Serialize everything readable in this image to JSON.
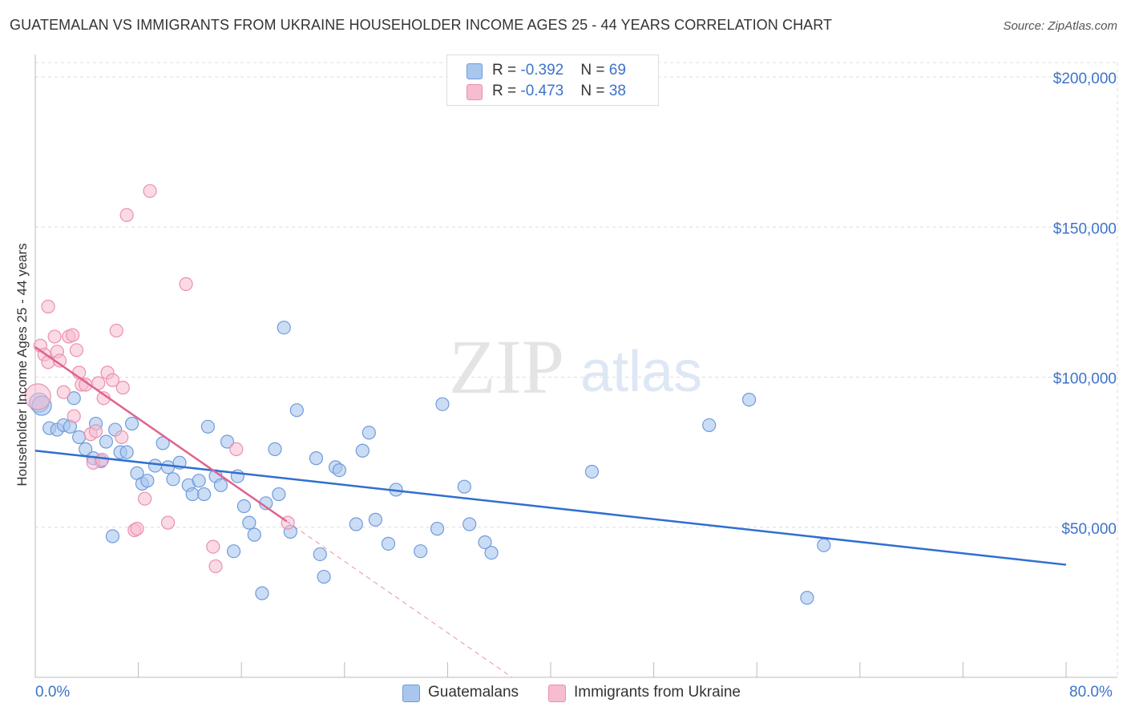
{
  "header": {
    "title": "GUATEMALAN VS IMMIGRANTS FROM UKRAINE HOUSEHOLDER INCOME AGES 25 - 44 YEARS CORRELATION CHART",
    "source": "Source: ZipAtlas.com"
  },
  "watermark": {
    "zip": "ZIP",
    "atlas": "atlas"
  },
  "legend": {
    "rows": [
      {
        "r_label": "R = ",
        "r_value": "-0.392",
        "n_label": "N = ",
        "n_value": "69"
      },
      {
        "r_label": "R = ",
        "r_value": "-0.473",
        "n_label": "N = ",
        "n_value": "38"
      }
    ]
  },
  "bottom_legend": {
    "series1": "Guatemalans",
    "series2": "Immigrants from Ukraine"
  },
  "colors": {
    "blue_fill": "#a9c6ee",
    "blue_stroke": "#6f9bdc",
    "blue_line": "#2f6fd0",
    "pink_fill": "#f6bcd0",
    "pink_stroke": "#ea90b0",
    "pink_line": "#e0628f",
    "axis_text": "#3d73c9",
    "grid": "#dddddd"
  },
  "chart_data": {
    "type": "scatter",
    "title": "GUATEMALAN VS IMMIGRANTS FROM UKRAINE HOUSEHOLDER INCOME AGES 25 - 44 YEARS CORRELATION CHART",
    "xlabel": "",
    "ylabel": "Householder Income Ages 25 - 44 years",
    "xlim": [
      0,
      80
    ],
    "ylim": [
      0,
      200000
    ],
    "x_tick_labels": [
      "0.0%",
      "80.0%"
    ],
    "y_ticks": [
      50000,
      100000,
      150000,
      200000
    ],
    "y_tick_labels": [
      "$50,000",
      "$100,000",
      "$150,000",
      "$200,000"
    ],
    "grid": true,
    "legend_position": "top-center",
    "series": [
      {
        "name": "Guatemalans",
        "r": -0.392,
        "n": 69,
        "trend": {
          "x": [
            0,
            80
          ],
          "y": [
            75500,
            37500
          ]
        },
        "points": [
          [
            0.3,
            91500
          ],
          [
            0.5,
            90500
          ],
          [
            1.1,
            83000
          ],
          [
            1.7,
            82500
          ],
          [
            2.2,
            84000
          ],
          [
            2.7,
            83500
          ],
          [
            3.4,
            80000
          ],
          [
            3.9,
            76000
          ],
          [
            4.5,
            73000
          ],
          [
            4.7,
            84500
          ],
          [
            5.1,
            72000
          ],
          [
            5.5,
            78500
          ],
          [
            6.2,
            82500
          ],
          [
            6.6,
            75000
          ],
          [
            7.1,
            75000
          ],
          [
            7.5,
            84500
          ],
          [
            7.9,
            68000
          ],
          [
            8.3,
            64500
          ],
          [
            8.7,
            65500
          ],
          [
            9.3,
            70500
          ],
          [
            9.9,
            78000
          ],
          [
            10.3,
            70000
          ],
          [
            10.7,
            66000
          ],
          [
            11.2,
            71500
          ],
          [
            11.9,
            64000
          ],
          [
            12.2,
            61000
          ],
          [
            12.7,
            65500
          ],
          [
            13.1,
            61000
          ],
          [
            13.4,
            83500
          ],
          [
            14.0,
            67000
          ],
          [
            14.4,
            64000
          ],
          [
            14.9,
            78500
          ],
          [
            15.4,
            42000
          ],
          [
            15.7,
            67000
          ],
          [
            16.2,
            57000
          ],
          [
            16.6,
            51500
          ],
          [
            17.0,
            47500
          ],
          [
            17.6,
            28000
          ],
          [
            17.9,
            58000
          ],
          [
            18.6,
            76000
          ],
          [
            18.9,
            61000
          ],
          [
            19.3,
            116500
          ],
          [
            19.8,
            48500
          ],
          [
            20.3,
            89000
          ],
          [
            21.8,
            73000
          ],
          [
            22.1,
            41000
          ],
          [
            22.4,
            33500
          ],
          [
            23.3,
            70000
          ],
          [
            23.6,
            69000
          ],
          [
            24.9,
            51000
          ],
          [
            25.4,
            75500
          ],
          [
            25.9,
            81500
          ],
          [
            26.4,
            52500
          ],
          [
            27.4,
            44500
          ],
          [
            28.0,
            62500
          ],
          [
            29.9,
            42000
          ],
          [
            31.2,
            49500
          ],
          [
            31.6,
            91000
          ],
          [
            33.3,
            63500
          ],
          [
            33.7,
            51000
          ],
          [
            34.9,
            45000
          ],
          [
            35.4,
            41500
          ],
          [
            43.2,
            68500
          ],
          [
            52.3,
            84000
          ],
          [
            55.4,
            92500
          ],
          [
            59.9,
            26500
          ],
          [
            61.2,
            44000
          ],
          [
            6.0,
            47000
          ],
          [
            3.0,
            93000
          ]
        ]
      },
      {
        "name": "Immigrants from Ukraine",
        "r": -0.473,
        "n": 38,
        "trend": {
          "x": [
            0,
            19.5
          ],
          "y": [
            110000,
            52000
          ]
        },
        "trend_extension": {
          "x": [
            19.5,
            37
          ],
          "y": [
            52000,
            0
          ]
        },
        "points": [
          [
            0.2,
            93500
          ],
          [
            0.4,
            110500
          ],
          [
            0.7,
            107500
          ],
          [
            1.0,
            105000
          ],
          [
            1.0,
            123500
          ],
          [
            1.5,
            113500
          ],
          [
            1.7,
            108500
          ],
          [
            1.9,
            105500
          ],
          [
            2.2,
            95000
          ],
          [
            2.6,
            113500
          ],
          [
            2.9,
            114000
          ],
          [
            3.0,
            87000
          ],
          [
            3.2,
            109000
          ],
          [
            3.4,
            101500
          ],
          [
            3.6,
            97500
          ],
          [
            3.9,
            97500
          ],
          [
            4.3,
            81000
          ],
          [
            4.5,
            71500
          ],
          [
            4.7,
            82000
          ],
          [
            4.9,
            98000
          ],
          [
            5.2,
            72500
          ],
          [
            5.3,
            93000
          ],
          [
            5.6,
            101500
          ],
          [
            6.0,
            99000
          ],
          [
            6.3,
            115500
          ],
          [
            6.7,
            80000
          ],
          [
            6.8,
            96500
          ],
          [
            7.1,
            154000
          ],
          [
            7.7,
            49000
          ],
          [
            7.9,
            49500
          ],
          [
            8.5,
            59500
          ],
          [
            8.9,
            162000
          ],
          [
            10.3,
            51500
          ],
          [
            11.7,
            131000
          ],
          [
            13.8,
            43500
          ],
          [
            14.0,
            37000
          ],
          [
            15.6,
            76000
          ],
          [
            19.6,
            51500
          ]
        ]
      }
    ]
  }
}
